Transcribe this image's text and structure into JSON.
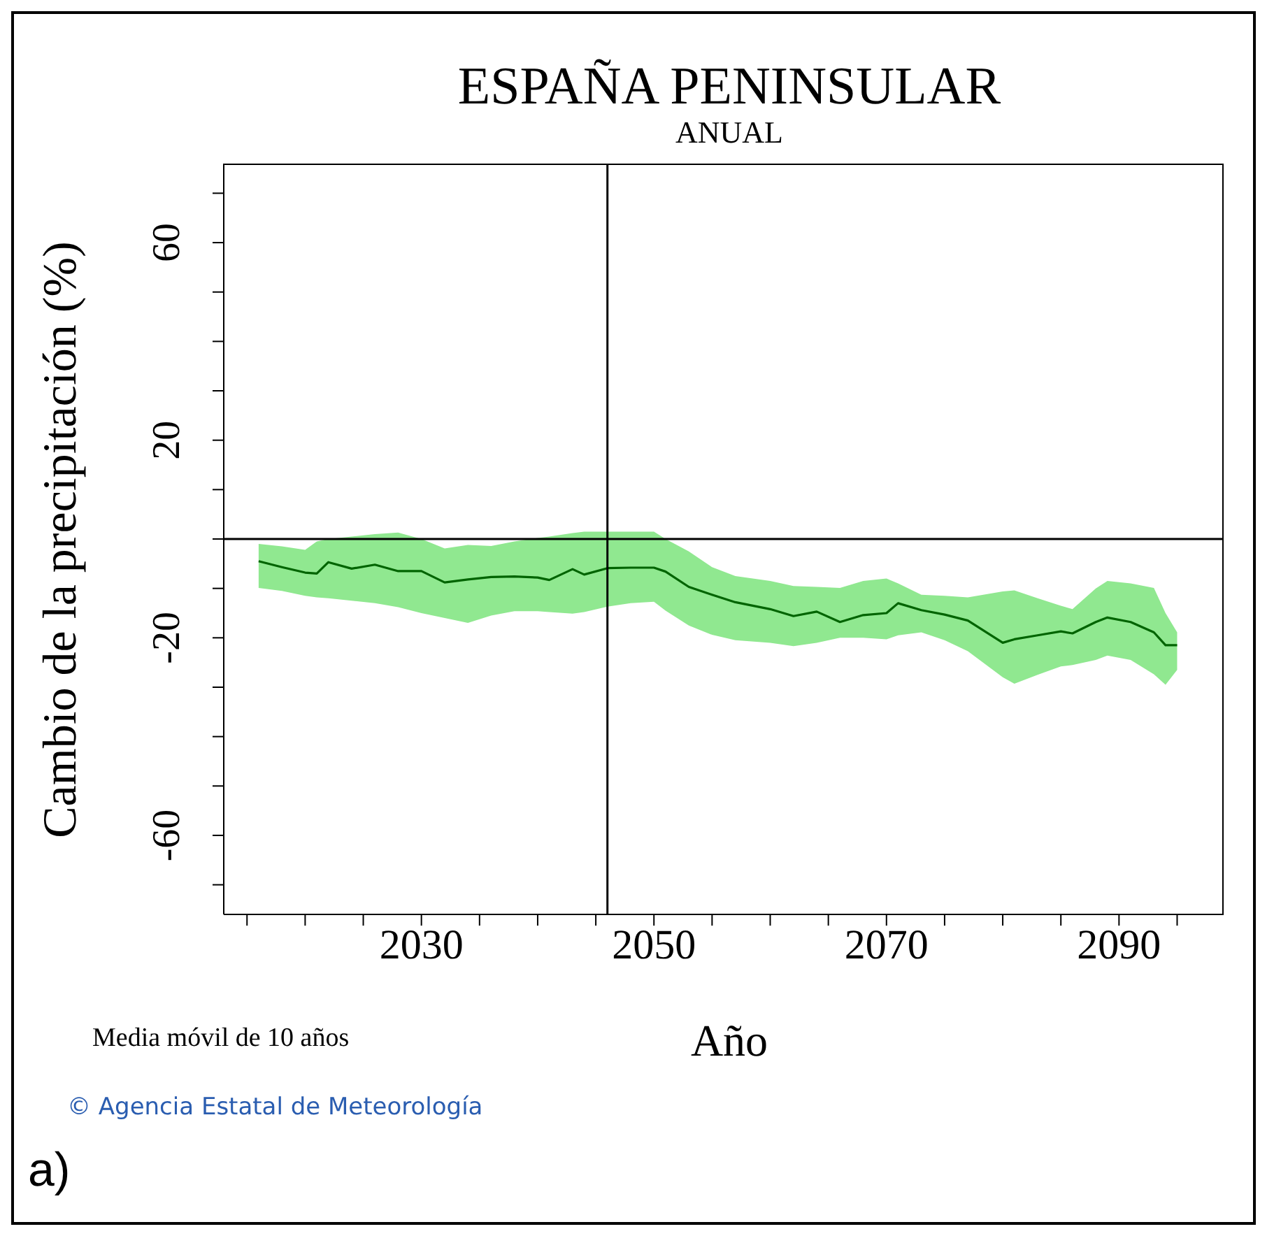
{
  "chart_data": {
    "type": "line",
    "title": "ESPAÑA PENINSULAR",
    "subtitle": "ANUAL",
    "xlabel": "Año",
    "ylabel": "Cambio de la precipitación (%)",
    "annotations": [
      "Media móvil de 10 años",
      "© Agencia Estatal de Meteorología",
      "a)"
    ],
    "x": [
      2016,
      2018,
      2020,
      2021,
      2022,
      2024,
      2026,
      2028,
      2030,
      2032,
      2034,
      2036,
      2038,
      2040,
      2041,
      2043,
      2044,
      2046,
      2048,
      2050,
      2051,
      2053,
      2055,
      2057,
      2060,
      2062,
      2064,
      2066,
      2068,
      2070,
      2071,
      2073,
      2075,
      2077,
      2080,
      2081,
      2083,
      2085,
      2086,
      2088,
      2089,
      2091,
      2093,
      2094,
      2095
    ],
    "series": [
      {
        "color": "#006400",
        "values": [
          -4.5,
          -5.7,
          -6.8,
          -7.0,
          -4.7,
          -6.0,
          -5.2,
          -6.5,
          -6.5,
          -8.8,
          -8.2,
          -7.7,
          -7.6,
          -7.8,
          -8.3,
          -6.1,
          -7.2,
          -5.9,
          -5.8,
          -5.8,
          -6.6,
          -9.7,
          -11.3,
          -12.8,
          -14.2,
          -15.6,
          -14.7,
          -16.8,
          -15.4,
          -15,
          -13,
          -14.4,
          -15.3,
          -16.5,
          -21,
          -20.3,
          -19.5,
          -18.7,
          -19.1,
          -16.8,
          -15.9,
          -16.8,
          -18.9,
          -21.5,
          -21.5
        ],
        "lower": [
          -9.9,
          -10.5,
          -11.5,
          -11.8,
          -12,
          -12.5,
          -13,
          -13.8,
          -15,
          -16,
          -17,
          -15.5,
          -14.6,
          -14.6,
          -14.8,
          -15.1,
          -14.8,
          -13.7,
          -13,
          -12.7,
          -14.5,
          -17.5,
          -19.4,
          -20.5,
          -21,
          -21.7,
          -21,
          -20,
          -20,
          -20.3,
          -19.5,
          -18.9,
          -20.5,
          -22.7,
          -28,
          -29.3,
          -27.5,
          -25.8,
          -25.5,
          -24.5,
          -23.6,
          -24.5,
          -27.4,
          -29.5,
          -26.5
        ],
        "upper": [
          -1,
          -1.5,
          -2.2,
          -0.5,
          0,
          0.5,
          1,
          1.3,
          0,
          -1.9,
          -1.2,
          -1.4,
          -0.5,
          0.2,
          0.5,
          1.2,
          1.5,
          1.5,
          1.5,
          1.5,
          0,
          -2.5,
          -5.7,
          -7.5,
          -8.5,
          -9.5,
          -9.7,
          -9.9,
          -8.5,
          -8,
          -9,
          -11.3,
          -11.5,
          -11.8,
          -10.6,
          -10.4,
          -12,
          -13.5,
          -14.2,
          -10,
          -8.5,
          -9,
          -9.9,
          -15,
          -18.9
        ]
      }
    ],
    "xlim": [
      2013,
      2099
    ],
    "ylim": [
      -76,
      76
    ],
    "xticks": [
      {
        "value": 2015,
        "label": null
      },
      {
        "value": 2020,
        "label": null
      },
      {
        "value": 2025,
        "label": null
      },
      2030,
      {
        "value": 2035,
        "label": null
      },
      {
        "value": 2040,
        "label": null
      },
      {
        "value": 2045,
        "label": null
      },
      2050,
      {
        "value": 2055,
        "label": null
      },
      {
        "value": 2060,
        "label": null
      },
      {
        "value": 2065,
        "label": null
      },
      2070,
      {
        "value": 2075,
        "label": null
      },
      {
        "value": 2080,
        "label": null
      },
      {
        "value": 2085,
        "label": null
      },
      2090,
      {
        "value": 2095,
        "label": null
      }
    ],
    "yticks": [
      {
        "value": -70,
        "label": null
      },
      -60,
      {
        "value": -50,
        "label": null
      },
      {
        "value": -40,
        "label": null
      },
      {
        "value": -30,
        "label": null
      },
      -20,
      {
        "value": -10,
        "label": null
      },
      {
        "value": 0,
        "label": null
      },
      {
        "value": 10,
        "label": null
      },
      20,
      {
        "value": 30,
        "label": null
      },
      {
        "value": 40,
        "label": null
      },
      {
        "value": 50,
        "label": null
      },
      60,
      {
        "value": 70,
        "label": null
      }
    ],
    "ref_lines": [
      {
        "axis": "x",
        "value": 2046,
        "color": "#000000"
      },
      {
        "axis": "y",
        "value": 0,
        "color": "#000000"
      }
    ],
    "grid": false,
    "marker": "none",
    "line_style": "solid"
  }
}
